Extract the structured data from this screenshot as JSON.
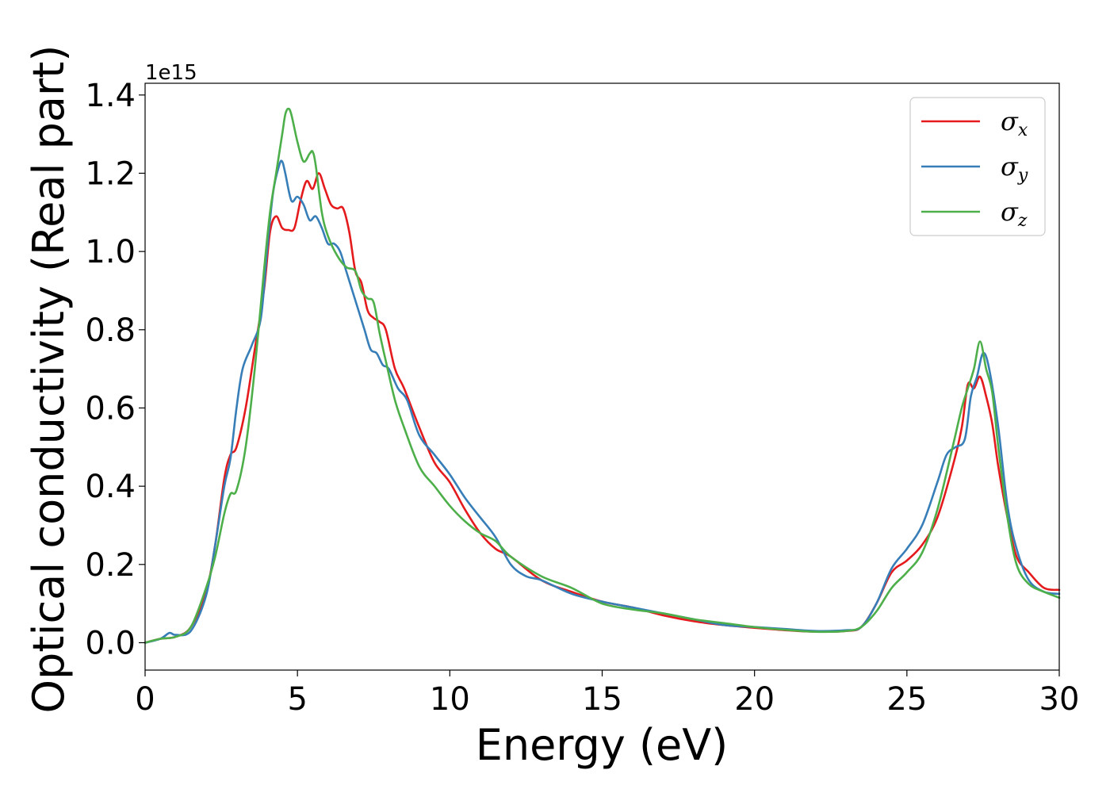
{
  "chart_data": {
    "type": "line",
    "title": "",
    "xlabel": "Energy (eV)",
    "ylabel": "Optical conductivity (Real part)",
    "y_offset_text": "1e15",
    "xlim": [
      0,
      30
    ],
    "ylim": [
      -0.07,
      1.43
    ],
    "y_scale": 1000000000000000.0,
    "xticks": [
      0,
      5,
      10,
      15,
      20,
      25,
      30
    ],
    "xtick_labels": [
      "0",
      "5",
      "10",
      "15",
      "20",
      "25",
      "30"
    ],
    "yticks": [
      0.0,
      0.2,
      0.4,
      0.6,
      0.8,
      1.0,
      1.2,
      1.4
    ],
    "ytick_labels": [
      "0.0",
      "0.2",
      "0.4",
      "0.6",
      "0.8",
      "1.0",
      "1.2",
      "1.4"
    ],
    "grid": false,
    "legend_position": "top-right",
    "series": [
      {
        "name": "σx",
        "symbol": "σ",
        "subscript": "x",
        "color": "#e41a1c",
        "x": [
          0,
          0.5,
          1,
          1.5,
          2,
          2.3,
          2.6,
          2.8,
          3,
          3.3,
          3.6,
          3.9,
          4.1,
          4.3,
          4.5,
          4.7,
          4.9,
          5.1,
          5.3,
          5.5,
          5.7,
          5.9,
          6.1,
          6.3,
          6.5,
          6.7,
          6.9,
          7.1,
          7.3,
          7.5,
          7.7,
          7.9,
          8.2,
          8.5,
          9,
          9.5,
          10,
          10.5,
          11,
          11.5,
          12,
          13,
          14,
          15,
          16,
          17,
          18,
          19,
          20,
          21,
          22,
          23,
          23.5,
          24,
          24.5,
          25,
          25.5,
          26,
          26.5,
          26.8,
          27,
          27.2,
          27.4,
          27.6,
          27.8,
          28,
          28.3,
          28.6,
          29,
          29.5,
          30
        ],
        "values": [
          0.0,
          0.01,
          0.015,
          0.04,
          0.13,
          0.25,
          0.42,
          0.48,
          0.5,
          0.6,
          0.75,
          0.9,
          1.05,
          1.09,
          1.06,
          1.055,
          1.06,
          1.13,
          1.18,
          1.16,
          1.2,
          1.16,
          1.12,
          1.11,
          1.11,
          1.05,
          0.95,
          0.92,
          0.85,
          0.83,
          0.82,
          0.8,
          0.7,
          0.65,
          0.55,
          0.46,
          0.41,
          0.34,
          0.28,
          0.24,
          0.22,
          0.16,
          0.13,
          0.105,
          0.09,
          0.07,
          0.055,
          0.045,
          0.038,
          0.032,
          0.028,
          0.03,
          0.04,
          0.1,
          0.18,
          0.21,
          0.25,
          0.32,
          0.45,
          0.55,
          0.66,
          0.65,
          0.68,
          0.63,
          0.56,
          0.45,
          0.32,
          0.22,
          0.18,
          0.14,
          0.135
        ]
      },
      {
        "name": "σy",
        "symbol": "σ",
        "subscript": "y",
        "color": "#377eb8",
        "x": [
          0,
          0.5,
          0.8,
          1,
          1.5,
          2,
          2.3,
          2.6,
          2.8,
          3,
          3.2,
          3.5,
          3.8,
          4,
          4.2,
          4.4,
          4.5,
          4.6,
          4.8,
          5,
          5.2,
          5.4,
          5.6,
          5.8,
          6,
          6.2,
          6.4,
          6.6,
          6.8,
          7,
          7.2,
          7.4,
          7.6,
          7.8,
          8,
          8.3,
          8.6,
          9,
          9.5,
          10,
          10.5,
          11,
          11.5,
          12,
          12.5,
          13,
          14,
          15,
          16,
          17,
          18,
          19,
          20,
          21,
          22,
          23,
          23.5,
          24,
          24.5,
          25,
          25.5,
          26,
          26.3,
          26.6,
          26.9,
          27.1,
          27.3,
          27.5,
          27.7,
          28,
          28.3,
          28.6,
          29,
          29.5,
          30
        ],
        "values": [
          0.0,
          0.01,
          0.025,
          0.02,
          0.03,
          0.12,
          0.25,
          0.4,
          0.47,
          0.6,
          0.7,
          0.76,
          0.83,
          1.0,
          1.15,
          1.22,
          1.23,
          1.2,
          1.13,
          1.14,
          1.12,
          1.08,
          1.09,
          1.06,
          1.02,
          1.02,
          1.0,
          0.95,
          0.9,
          0.85,
          0.8,
          0.75,
          0.74,
          0.71,
          0.7,
          0.65,
          0.62,
          0.53,
          0.48,
          0.43,
          0.37,
          0.32,
          0.27,
          0.2,
          0.17,
          0.16,
          0.125,
          0.105,
          0.09,
          0.075,
          0.06,
          0.045,
          0.04,
          0.035,
          0.03,
          0.032,
          0.04,
          0.1,
          0.19,
          0.24,
          0.3,
          0.41,
          0.48,
          0.5,
          0.52,
          0.63,
          0.68,
          0.74,
          0.7,
          0.55,
          0.35,
          0.24,
          0.16,
          0.13,
          0.125
        ]
      },
      {
        "name": "σz",
        "symbol": "σ",
        "subscript": "z",
        "color": "#4daf4a",
        "x": [
          0,
          0.5,
          1,
          1.5,
          2,
          2.3,
          2.6,
          2.8,
          3,
          3.3,
          3.6,
          3.9,
          4.1,
          4.3,
          4.5,
          4.6,
          4.7,
          4.8,
          5,
          5.2,
          5.4,
          5.5,
          5.6,
          5.8,
          6,
          6.3,
          6.6,
          6.9,
          7.1,
          7.3,
          7.5,
          7.7,
          7.9,
          8.2,
          8.5,
          9,
          9.5,
          10,
          10.5,
          11,
          11.5,
          12,
          13,
          14,
          15,
          16,
          17,
          18,
          19,
          20,
          21,
          22,
          23,
          23.5,
          24,
          24.5,
          25,
          25.5,
          26,
          26.5,
          26.8,
          27,
          27.2,
          27.4,
          27.6,
          27.8,
          28,
          28.3,
          28.6,
          29,
          29.5,
          30
        ],
        "values": [
          0.0,
          0.01,
          0.015,
          0.04,
          0.14,
          0.22,
          0.33,
          0.38,
          0.39,
          0.5,
          0.7,
          0.95,
          1.1,
          1.2,
          1.3,
          1.35,
          1.365,
          1.35,
          1.28,
          1.23,
          1.25,
          1.255,
          1.22,
          1.1,
          1.04,
          0.99,
          0.96,
          0.95,
          0.9,
          0.88,
          0.87,
          0.79,
          0.72,
          0.62,
          0.55,
          0.45,
          0.4,
          0.35,
          0.31,
          0.28,
          0.26,
          0.22,
          0.17,
          0.14,
          0.1,
          0.085,
          0.075,
          0.06,
          0.05,
          0.04,
          0.033,
          0.028,
          0.03,
          0.04,
          0.08,
          0.14,
          0.18,
          0.23,
          0.34,
          0.5,
          0.6,
          0.65,
          0.7,
          0.77,
          0.7,
          0.64,
          0.5,
          0.32,
          0.2,
          0.15,
          0.13,
          0.115
        ]
      }
    ]
  }
}
